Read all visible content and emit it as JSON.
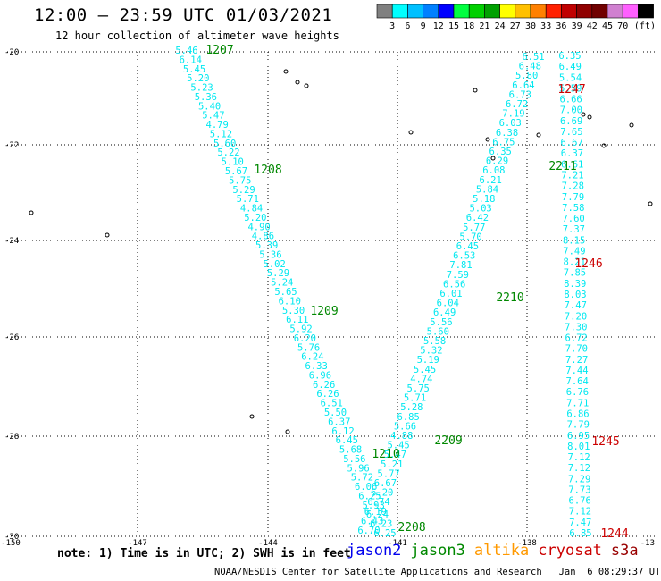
{
  "title": "12:00 – 23:59 UTC 01/03/2021",
  "subtitle": "12 hour collection of altimeter wave heights",
  "legend": {
    "colors": [
      "#808080",
      "#00ffff",
      "#00c0ff",
      "#0080ff",
      "#0000ff",
      "#00ff40",
      "#00d000",
      "#00a000",
      "#ffff00",
      "#ffc000",
      "#ff8000",
      "#ff2000",
      "#c00000",
      "#900000",
      "#700000",
      "#d080d0",
      "#ff60ff",
      "#000000"
    ],
    "labels": [
      "3",
      "6",
      "9",
      "12",
      "15",
      "18",
      "21",
      "24",
      "27",
      "30",
      "33",
      "36",
      "39",
      "42",
      "45",
      "70"
    ],
    "unit": "(ft)"
  },
  "map": {
    "lon_ticks": [
      "-150",
      "-147",
      "-144",
      "-141",
      "-138",
      "-13"
    ],
    "lat_ticks": [
      "-20",
      "-22",
      "-24",
      "-26",
      "-28",
      "-30"
    ],
    "tracks": [
      {
        "satellite": "jason3",
        "color": "#00e8f0",
        "descending_values": [
          "5.46",
          "6.14",
          "5.45",
          "5.20",
          "5.23",
          "5.36",
          "5.40",
          "5.47",
          "4.79",
          "5.12",
          "5.60",
          "5.22",
          "5.10",
          "5.67",
          "5.75",
          "5.29",
          "5.71",
          "4.84",
          "5.20",
          "4.90",
          "4.86",
          "5.39",
          "5.36",
          "5.02",
          "5.29",
          "5.24",
          "5.65",
          "6.10",
          "5.30",
          "6.11",
          "5.92",
          "6.20",
          "5.76",
          "6.24",
          "6.33",
          "6.96",
          "6.26",
          "6.26",
          "6.51",
          "5.50",
          "6.37",
          "6.12",
          "6.45",
          "5.68",
          "5.56",
          "5.96",
          "5.72",
          "6.06",
          "6.25",
          "5.93",
          "6.24",
          "6.23",
          "6.25"
        ],
        "ascending_values": [
          "6.51",
          "6.48",
          "5.80",
          "6.64",
          "6.73",
          "6.72",
          "7.19",
          "6.03",
          "6.38",
          "6.75",
          "6.35",
          "6.29",
          "6.08",
          "6.21",
          "5.84",
          "5.18",
          "5.03",
          "6.42",
          "5.77",
          "5.70",
          "6.45",
          "6.53",
          "7.81",
          "7.59",
          "6.56",
          "6.01",
          "6.04",
          "6.49",
          "5.56",
          "5.60",
          "5.58",
          "5.32",
          "5.19",
          "5.45",
          "4.74",
          "5.75",
          "5.71",
          "5.28",
          "6.85",
          "5.66",
          "4.88",
          "5.45",
          "5.47",
          "5.21",
          "5.77",
          "6.67",
          "6.20",
          "6.74",
          "6.19",
          "6.43",
          "6.70"
        ],
        "time_labels": [
          "1207",
          "1208",
          "1209",
          "1210",
          "2208",
          "2209",
          "2210",
          "2211"
        ]
      },
      {
        "satellite": "cryosat",
        "color": "#00e8f0",
        "values": [
          "6.35",
          "6.49",
          "5.54",
          "5.59",
          "6.66",
          "7.00",
          "6.69",
          "7.65",
          "6.67",
          "6.37",
          "6.61",
          "7.21",
          "7.28",
          "7.79",
          "7.58",
          "7.60",
          "7.37",
          "8.15",
          "7.49",
          "8.21",
          "7.85",
          "8.39",
          "8.03",
          "7.47",
          "7.20",
          "7.30",
          "6.72",
          "7.70",
          "7.27",
          "7.44",
          "7.64",
          "6.76",
          "7.71",
          "6.86",
          "7.79",
          "6.95",
          "8.01",
          "7.12",
          "7.12",
          "7.29",
          "7.73",
          "6.76",
          "7.12",
          "7.47",
          "6.85"
        ],
        "time_labels": [
          "1247",
          "1246",
          "1245",
          "1244"
        ]
      }
    ]
  },
  "note": "note: 1) Time is in UTC; 2) SWH is in feet",
  "satellites": [
    {
      "name": "jason2",
      "color": "#0000ee"
    },
    {
      "name": "jason3",
      "color": "#008800"
    },
    {
      "name": "altika",
      "color": "#ff9900"
    },
    {
      "name": "cryosat",
      "color": "#cc0000"
    },
    {
      "name": "s3a",
      "color": "#990000"
    }
  ],
  "credit": "NOAA/NESDIS Center for Satellite Applications and Research   Jan  6 08:29:37 UTC 2021"
}
